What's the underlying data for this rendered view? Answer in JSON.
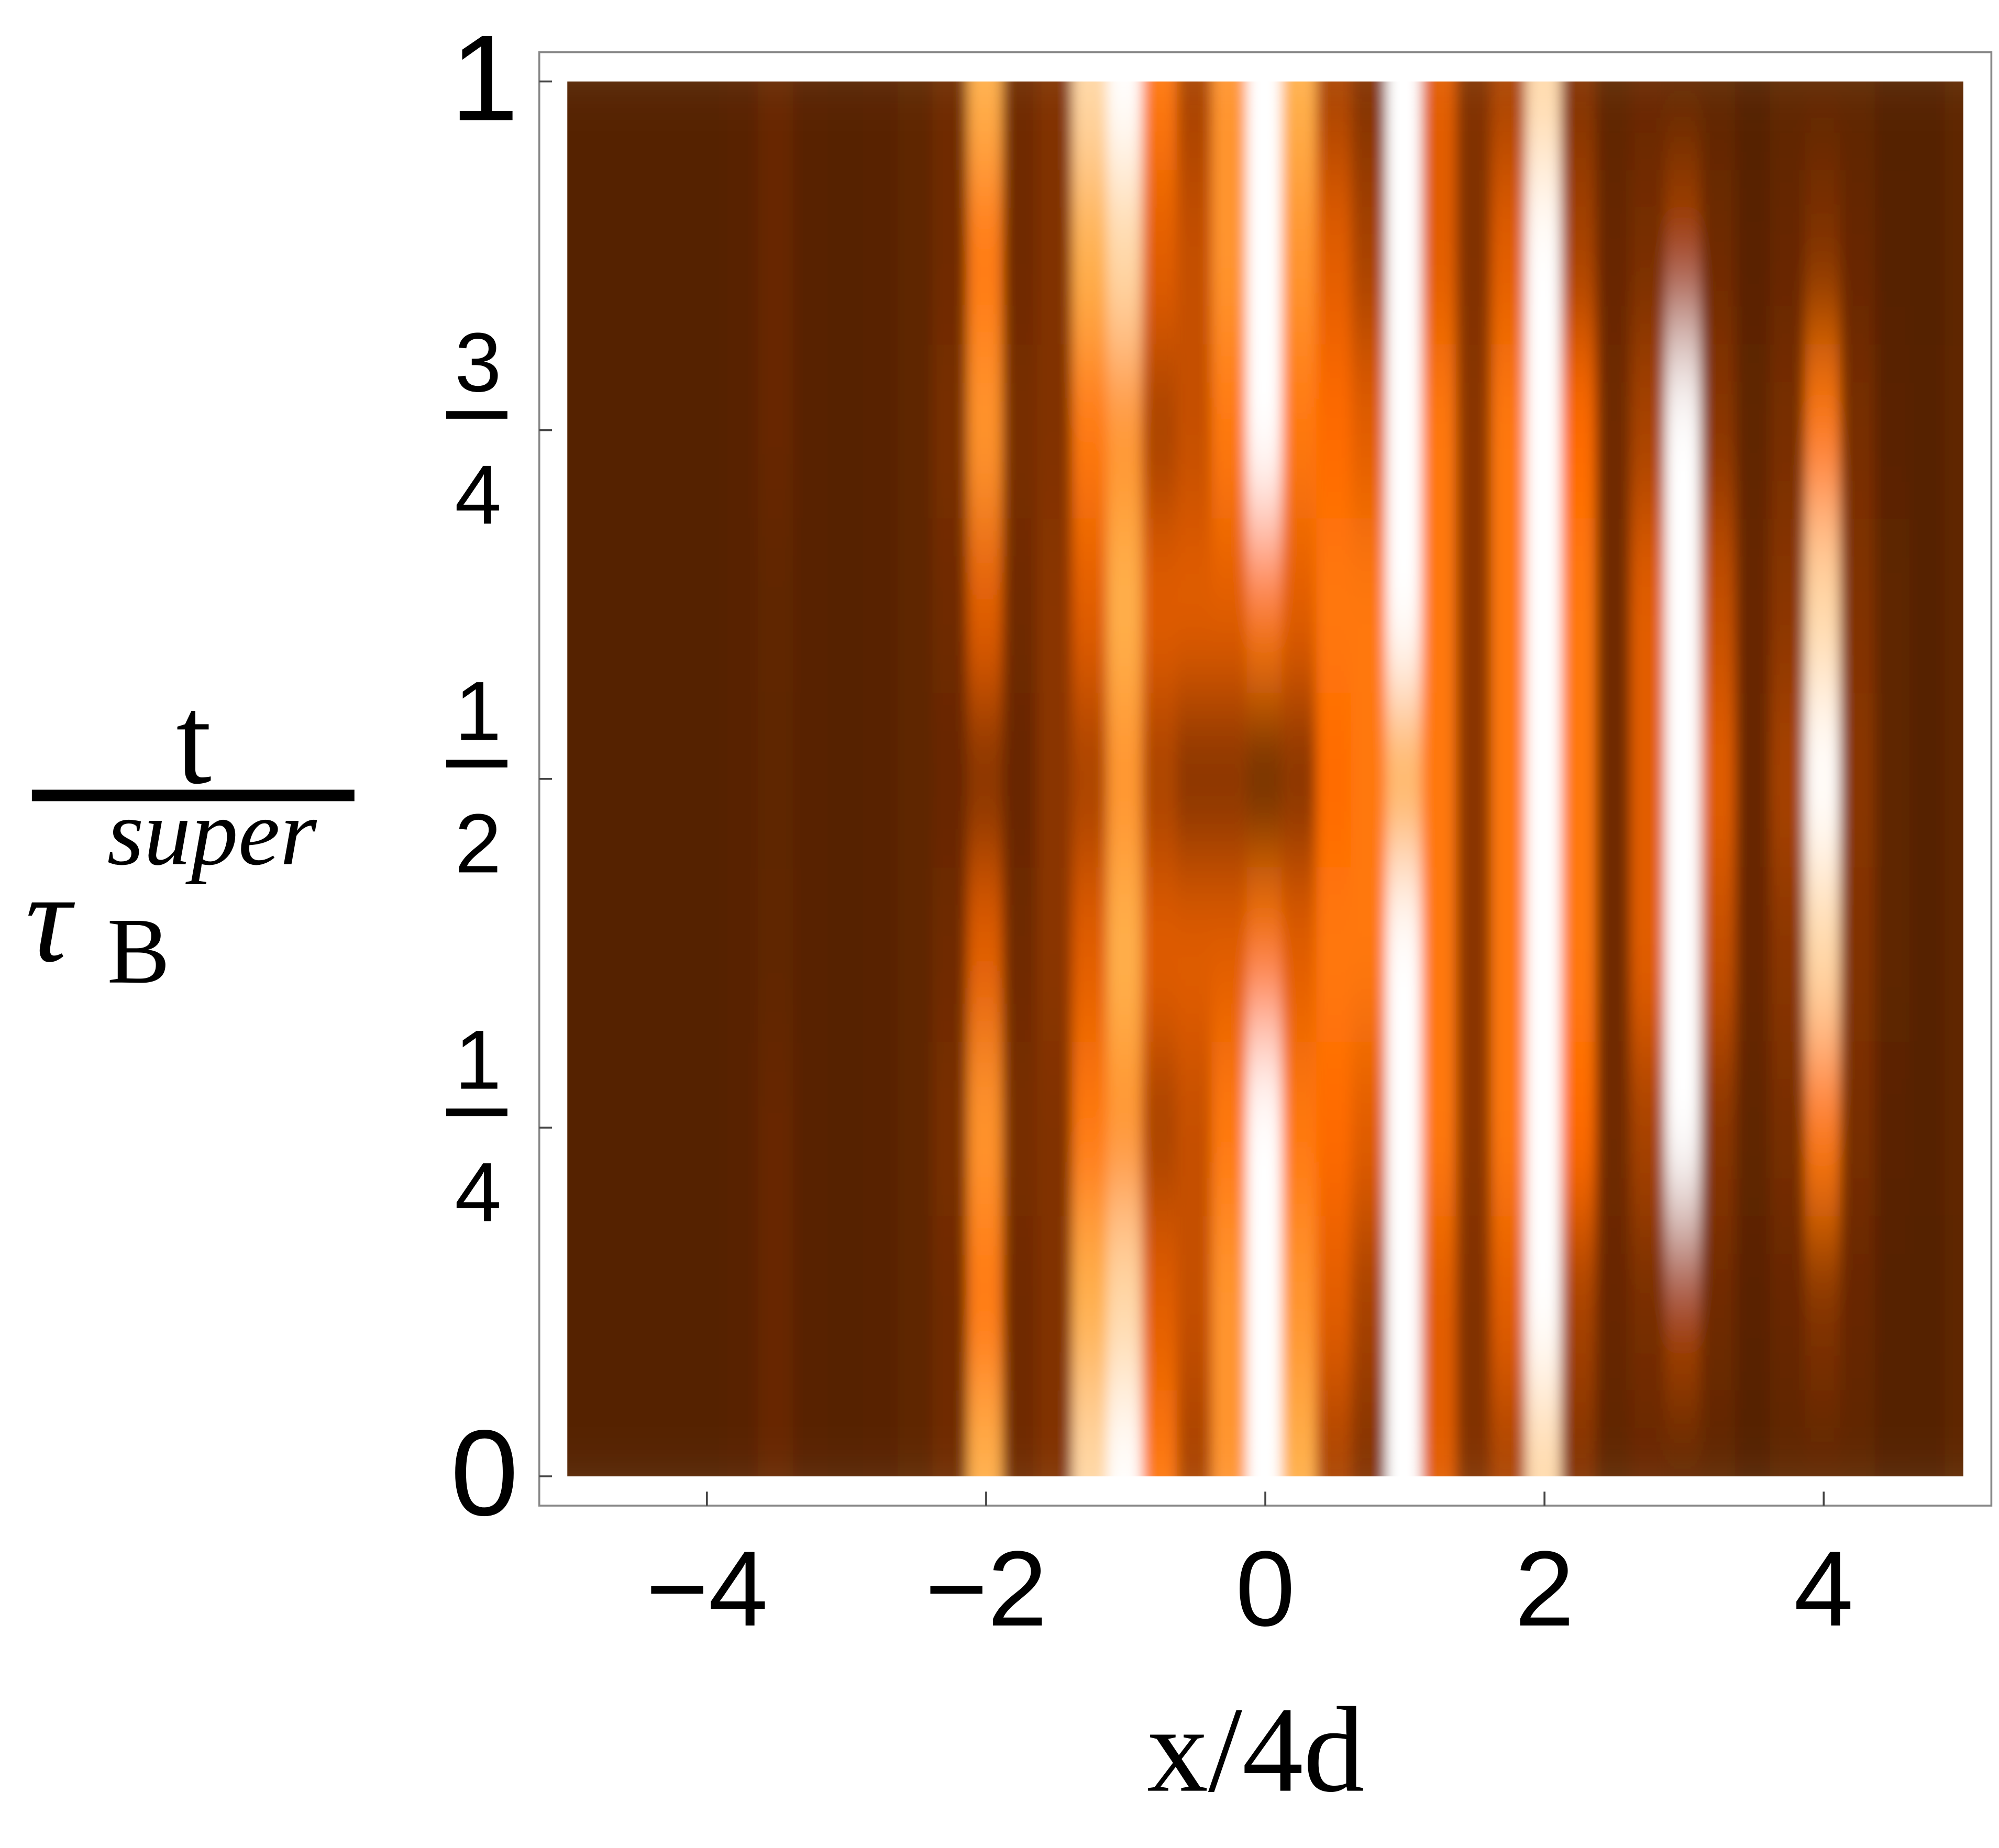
{
  "chart_data": {
    "type": "heatmap",
    "xlabel": "x/4d",
    "ylabel": {
      "numerator": "t",
      "denominator": "τ",
      "subscript": "B",
      "superscript": "super"
    },
    "xlim": [
      -5,
      5
    ],
    "ylim": [
      0,
      1
    ],
    "xticks": [
      {
        "value": -4,
        "label": "−4"
      },
      {
        "value": -2,
        "label": "−2"
      },
      0,
      2,
      4
    ],
    "yticks": [
      0,
      {
        "value": 0.25,
        "numerator": "1",
        "denominator": "4"
      },
      {
        "value": 0.5,
        "numerator": "1",
        "denominator": "2"
      },
      {
        "value": 0.75,
        "numerator": "3",
        "denominator": "4"
      },
      1
    ],
    "colorscale": [
      [
        0,
        "#4c1e00"
      ],
      [
        0.35,
        "#8a3600"
      ],
      [
        0.55,
        "#ff6a00"
      ],
      [
        0.8,
        "#ffb04c"
      ],
      [
        1,
        "#ffffff"
      ]
    ],
    "x": [
      -5,
      -4.75,
      -4.5,
      -4.25,
      -4,
      -3.75,
      -3.5,
      -3.25,
      -3,
      -2.75,
      -2.5,
      -2.25,
      -2,
      -1.75,
      -1.5,
      -1.25,
      -1,
      -0.75,
      -0.5,
      -0.25,
      0,
      0.25,
      0.5,
      0.75,
      1,
      1.25,
      1.5,
      1.75,
      2,
      2.25,
      2.5,
      2.75,
      3,
      3.25,
      3.5,
      3.75,
      4,
      4.25,
      4.5,
      4.75,
      5
    ],
    "y": [
      0,
      0.125,
      0.25,
      0.375,
      0.5,
      0.625,
      0.75,
      0.875,
      1
    ],
    "z": [
      [
        0.05,
        0.05,
        0.05,
        0.05,
        0.05,
        0.07,
        0.15,
        0.07,
        0.06,
        0.07,
        0.1,
        0.2,
        0.8,
        0.2,
        0.3,
        0.9,
        1,
        0.6,
        0.4,
        0.7,
        1,
        0.8,
        0.4,
        0.3,
        1,
        0.5,
        0.3,
        0.4,
        0.9,
        0.3,
        0.1,
        0.15,
        0.1,
        0.1,
        0.05,
        0.1,
        0.1,
        0.1,
        0.05,
        0.05,
        0.1
      ],
      [
        0.05,
        0.05,
        0.05,
        0.05,
        0.05,
        0.07,
        0.15,
        0.07,
        0.06,
        0.07,
        0.1,
        0.2,
        0.6,
        0.2,
        0.3,
        0.8,
        0.9,
        0.5,
        0.45,
        0.7,
        1,
        0.7,
        0.5,
        0.4,
        1,
        0.5,
        0.3,
        0.5,
        1,
        0.4,
        0.15,
        0.25,
        0.4,
        0.2,
        0.08,
        0.15,
        0.3,
        0.15,
        0.06,
        0.05,
        0.1
      ],
      [
        0.05,
        0.05,
        0.05,
        0.05,
        0.05,
        0.07,
        0.15,
        0.07,
        0.06,
        0.07,
        0.1,
        0.25,
        0.7,
        0.25,
        0.3,
        0.6,
        0.7,
        0.4,
        0.45,
        0.6,
        1,
        0.6,
        0.55,
        0.5,
        1,
        0.6,
        0.35,
        0.6,
        1,
        0.55,
        0.2,
        0.4,
        1,
        0.35,
        0.12,
        0.25,
        0.6,
        0.25,
        0.08,
        0.06,
        0.12
      ],
      [
        0.05,
        0.05,
        0.05,
        0.05,
        0.05,
        0.07,
        0.12,
        0.07,
        0.06,
        0.07,
        0.1,
        0.2,
        0.5,
        0.2,
        0.35,
        0.5,
        0.8,
        0.5,
        0.5,
        0.5,
        0.6,
        0.5,
        0.6,
        0.6,
        1,
        0.6,
        0.35,
        0.6,
        1,
        0.6,
        0.2,
        0.5,
        1,
        0.45,
        0.15,
        0.35,
        0.9,
        0.3,
        0.1,
        0.06,
        0.12
      ],
      [
        0.05,
        0.05,
        0.05,
        0.05,
        0.05,
        0.07,
        0.1,
        0.07,
        0.06,
        0.07,
        0.1,
        0.15,
        0.3,
        0.15,
        0.35,
        0.4,
        0.7,
        0.4,
        0.3,
        0.3,
        0.1,
        0.3,
        0.55,
        0.6,
        0.8,
        0.6,
        0.35,
        0.6,
        1,
        0.6,
        0.2,
        0.5,
        1,
        0.5,
        0.15,
        0.4,
        1,
        0.35,
        0.1,
        0.06,
        0.12
      ],
      [
        0.05,
        0.05,
        0.05,
        0.05,
        0.05,
        0.07,
        0.12,
        0.07,
        0.06,
        0.07,
        0.1,
        0.2,
        0.5,
        0.2,
        0.35,
        0.5,
        0.8,
        0.5,
        0.5,
        0.5,
        0.6,
        0.5,
        0.6,
        0.6,
        1,
        0.6,
        0.35,
        0.6,
        1,
        0.6,
        0.2,
        0.5,
        1,
        0.45,
        0.15,
        0.35,
        0.9,
        0.3,
        0.1,
        0.06,
        0.12
      ],
      [
        0.05,
        0.05,
        0.05,
        0.05,
        0.05,
        0.07,
        0.15,
        0.07,
        0.06,
        0.07,
        0.1,
        0.25,
        0.7,
        0.25,
        0.3,
        0.6,
        0.7,
        0.4,
        0.45,
        0.6,
        1,
        0.6,
        0.55,
        0.5,
        1,
        0.6,
        0.35,
        0.6,
        1,
        0.55,
        0.2,
        0.4,
        1,
        0.35,
        0.12,
        0.25,
        0.6,
        0.25,
        0.08,
        0.06,
        0.12
      ],
      [
        0.05,
        0.05,
        0.05,
        0.05,
        0.05,
        0.07,
        0.15,
        0.07,
        0.06,
        0.07,
        0.1,
        0.2,
        0.6,
        0.2,
        0.3,
        0.8,
        0.9,
        0.5,
        0.45,
        0.7,
        1,
        0.7,
        0.5,
        0.4,
        1,
        0.5,
        0.3,
        0.5,
        1,
        0.4,
        0.15,
        0.25,
        0.4,
        0.2,
        0.08,
        0.15,
        0.3,
        0.15,
        0.06,
        0.05,
        0.1
      ],
      [
        0.05,
        0.05,
        0.05,
        0.05,
        0.05,
        0.07,
        0.15,
        0.07,
        0.06,
        0.07,
        0.1,
        0.2,
        0.8,
        0.2,
        0.3,
        0.9,
        1,
        0.6,
        0.4,
        0.7,
        1,
        0.8,
        0.4,
        0.3,
        1,
        0.5,
        0.3,
        0.4,
        0.9,
        0.3,
        0.1,
        0.15,
        0.1,
        0.1,
        0.05,
        0.1,
        0.1,
        0.1,
        0.05,
        0.05,
        0.1
      ]
    ]
  }
}
